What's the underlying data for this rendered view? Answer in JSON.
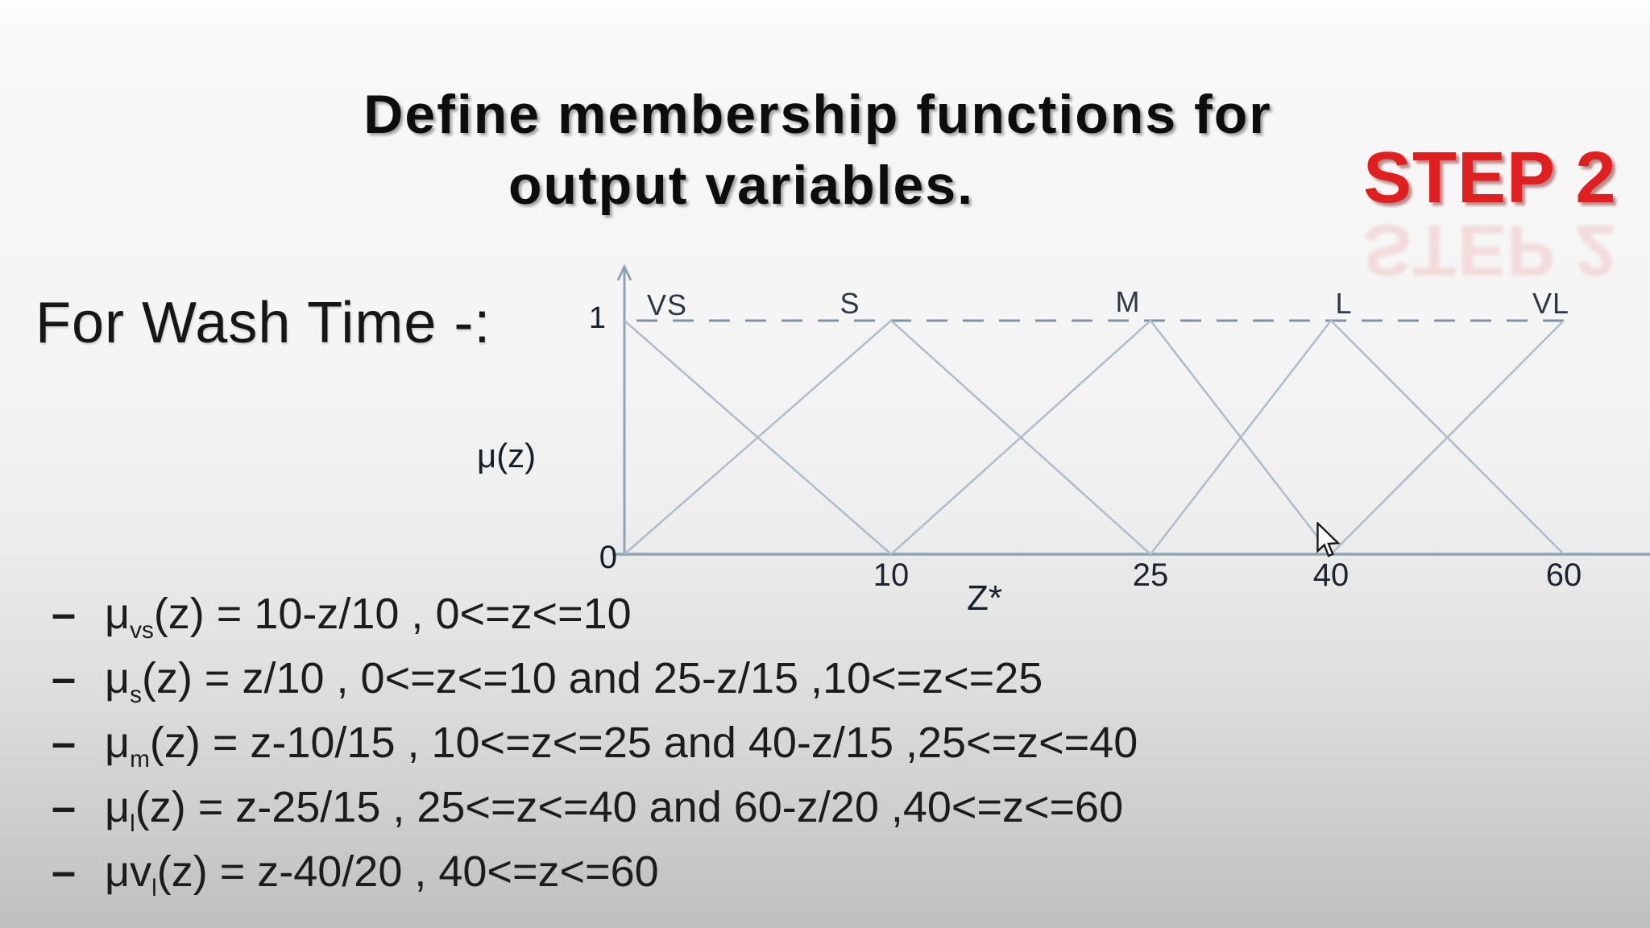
{
  "slide": {
    "title_line1": "Define membership functions for",
    "title_line2": "output variables.",
    "step_badge": "STEP 2",
    "section_label": "For Wash Time -:",
    "accent_red": "#e02020"
  },
  "chart_data": {
    "type": "line",
    "title": "",
    "xlabel": "Z*",
    "ylabel": "μ(z)",
    "origin_label": "0",
    "y_tick_labels": [
      "1"
    ],
    "x_tick_labels": [
      "10",
      "25",
      "40",
      "60"
    ],
    "x_tick_values": [
      10,
      25,
      40,
      60
    ],
    "xlim": [
      0,
      60
    ],
    "ylim": [
      0,
      1
    ],
    "grid": false,
    "legend_position": "labels-above-curves",
    "reference_line": {
      "y": 1,
      "style": "dashed"
    },
    "line_color": "#aebdc9",
    "axis_color": "#8fa3b5",
    "dash_color": "#8093a6",
    "series": [
      {
        "name": "VS",
        "points": [
          [
            0,
            1
          ],
          [
            10,
            0
          ]
        ]
      },
      {
        "name": "S",
        "points": [
          [
            0,
            0
          ],
          [
            10,
            1
          ],
          [
            25,
            0
          ]
        ]
      },
      {
        "name": "M",
        "points": [
          [
            10,
            0
          ],
          [
            25,
            1
          ],
          [
            40,
            0
          ]
        ]
      },
      {
        "name": "L",
        "points": [
          [
            25,
            0
          ],
          [
            40,
            1
          ],
          [
            60,
            0
          ]
        ]
      },
      {
        "name": "VL",
        "points": [
          [
            40,
            0
          ],
          [
            60,
            1
          ]
        ]
      }
    ]
  },
  "formulas": {
    "bullet": "–",
    "items": [
      {
        "prefix": "μ",
        "sub": "vs",
        "rest": "(z) = 10-z/10 , 0<=z<=10"
      },
      {
        "prefix": "μ",
        "sub": "s",
        "rest": "(z) = z/10 , 0<=z<=10 and 25-z/15 ,10<=z<=25"
      },
      {
        "prefix": "μ",
        "sub": "m",
        "rest": "(z) = z-10/15 , 10<=z<=25 and 40-z/15 ,25<=z<=40"
      },
      {
        "prefix": "μ",
        "sub": "l",
        "rest": "(z) = z-25/15 , 25<=z<=40 and 60-z/20 ,40<=z<=60"
      },
      {
        "prefix": "μv",
        "sub": "l",
        "rest": "(z) = z-40/20 , 40<=z<=60"
      }
    ]
  },
  "icons": {
    "cursor": "mouse-pointer-arrow"
  }
}
